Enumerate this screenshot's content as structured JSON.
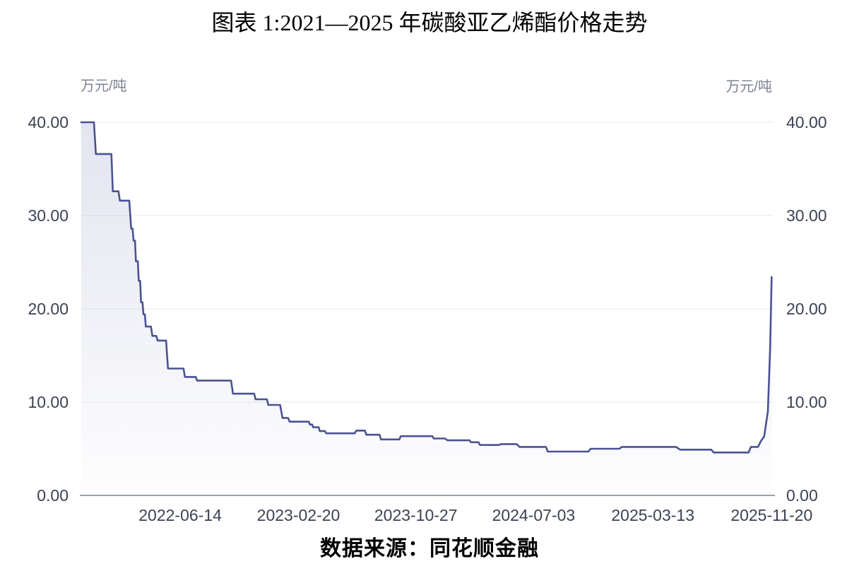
{
  "title": "图表 1:2021—2025 年碳酸亚乙烯酯价格走势",
  "source": "数据来源：同花顺金融",
  "colors": {
    "line": "#4A5294",
    "area_fill": "#636DA6",
    "grid": "#EAEAF2",
    "axis_line": "#9AA0B4",
    "tick_text": "#3D4154",
    "unit_text": "#7D8191",
    "title_text": "#000000"
  },
  "chart_data": {
    "type": "area",
    "title": "2021—2025 年碳酸亚乙烯酯价格走势",
    "series_name": "碳酸亚乙烯酯价格",
    "xlabel": "",
    "ylabel": "万元/吨",
    "unit_left": "万元/吨",
    "unit_right": "万元/吨",
    "ylim": [
      0,
      40
    ],
    "grid": true,
    "legend": "none",
    "y_ticks": [
      {
        "value": 0,
        "label": "0.00"
      },
      {
        "value": 10,
        "label": "10.00"
      },
      {
        "value": 20,
        "label": "20.00"
      },
      {
        "value": 30,
        "label": "30.00"
      },
      {
        "value": 40,
        "label": "40.00"
      }
    ],
    "x_ticks": [
      "2022-06-14",
      "2023-02-20",
      "2023-10-27",
      "2024-07-03",
      "2025-03-13",
      "2025-11-20"
    ],
    "x_domain": [
      "2021-11-16",
      "2025-11-24"
    ],
    "points": [
      [
        "2021-11-16",
        40.0
      ],
      [
        "2021-12-13",
        40.0
      ],
      [
        "2021-12-17",
        36.6
      ],
      [
        "2022-01-19",
        36.6
      ],
      [
        "2022-01-22",
        32.6
      ],
      [
        "2022-02-03",
        32.6
      ],
      [
        "2022-02-06",
        31.6
      ],
      [
        "2022-02-26",
        31.6
      ],
      [
        "2022-03-02",
        28.6
      ],
      [
        "2022-03-05",
        28.6
      ],
      [
        "2022-03-07",
        27.3
      ],
      [
        "2022-03-10",
        27.3
      ],
      [
        "2022-03-12",
        25.1
      ],
      [
        "2022-03-16",
        25.1
      ],
      [
        "2022-03-18",
        23.0
      ],
      [
        "2022-03-21",
        23.0
      ],
      [
        "2022-03-23",
        20.7
      ],
      [
        "2022-03-26",
        20.7
      ],
      [
        "2022-03-28",
        19.4
      ],
      [
        "2022-03-31",
        19.4
      ],
      [
        "2022-04-02",
        18.1
      ],
      [
        "2022-04-13",
        18.1
      ],
      [
        "2022-04-16",
        17.1
      ],
      [
        "2022-04-24",
        17.1
      ],
      [
        "2022-04-27",
        16.6
      ],
      [
        "2022-05-15",
        16.6
      ],
      [
        "2022-05-19",
        13.6
      ],
      [
        "2022-06-21",
        13.6
      ],
      [
        "2022-06-24",
        12.7
      ],
      [
        "2022-07-17",
        12.7
      ],
      [
        "2022-07-20",
        12.3
      ],
      [
        "2022-09-30",
        12.3
      ],
      [
        "2022-10-04",
        10.9
      ],
      [
        "2022-11-18",
        10.9
      ],
      [
        "2022-11-21",
        10.3
      ],
      [
        "2022-12-15",
        10.3
      ],
      [
        "2022-12-18",
        9.7
      ],
      [
        "2023-01-12",
        9.7
      ],
      [
        "2023-01-17",
        8.3
      ],
      [
        "2023-01-29",
        8.3
      ],
      [
        "2023-02-01",
        7.9
      ],
      [
        "2023-03-14",
        7.9
      ],
      [
        "2023-03-16",
        7.6
      ],
      [
        "2023-03-21",
        7.6
      ],
      [
        "2023-03-23",
        7.3
      ],
      [
        "2023-04-04",
        7.3
      ],
      [
        "2023-04-06",
        6.9
      ],
      [
        "2023-04-17",
        6.9
      ],
      [
        "2023-04-20",
        6.65
      ],
      [
        "2023-06-19",
        6.65
      ],
      [
        "2023-06-23",
        6.95
      ],
      [
        "2023-07-11",
        6.95
      ],
      [
        "2023-07-14",
        6.5
      ],
      [
        "2023-08-11",
        6.5
      ],
      [
        "2023-08-14",
        6.0
      ],
      [
        "2023-09-22",
        6.0
      ],
      [
        "2023-09-25",
        6.35
      ],
      [
        "2023-12-01",
        6.35
      ],
      [
        "2023-12-04",
        6.1
      ],
      [
        "2023-12-28",
        6.1
      ],
      [
        "2024-01-02",
        5.9
      ],
      [
        "2024-02-18",
        5.9
      ],
      [
        "2024-02-21",
        5.7
      ],
      [
        "2024-03-08",
        5.7
      ],
      [
        "2024-03-11",
        5.4
      ],
      [
        "2024-04-20",
        5.4
      ],
      [
        "2024-04-25",
        5.5
      ],
      [
        "2024-05-28",
        5.5
      ],
      [
        "2024-06-03",
        5.2
      ],
      [
        "2024-07-29",
        5.2
      ],
      [
        "2024-08-02",
        4.7
      ],
      [
        "2024-10-27",
        4.7
      ],
      [
        "2024-11-01",
        5.0
      ],
      [
        "2025-01-01",
        5.0
      ],
      [
        "2025-01-06",
        5.2
      ],
      [
        "2025-05-01",
        5.2
      ],
      [
        "2025-05-10",
        4.9
      ],
      [
        "2025-07-15",
        4.9
      ],
      [
        "2025-07-20",
        4.6
      ],
      [
        "2025-10-02",
        4.6
      ],
      [
        "2025-10-07",
        5.2
      ],
      [
        "2025-10-22",
        5.2
      ],
      [
        "2025-10-28",
        5.8
      ],
      [
        "2025-11-04",
        6.3
      ],
      [
        "2025-11-12",
        9.0
      ],
      [
        "2025-11-17",
        16.0
      ],
      [
        "2025-11-20",
        23.4
      ]
    ]
  }
}
